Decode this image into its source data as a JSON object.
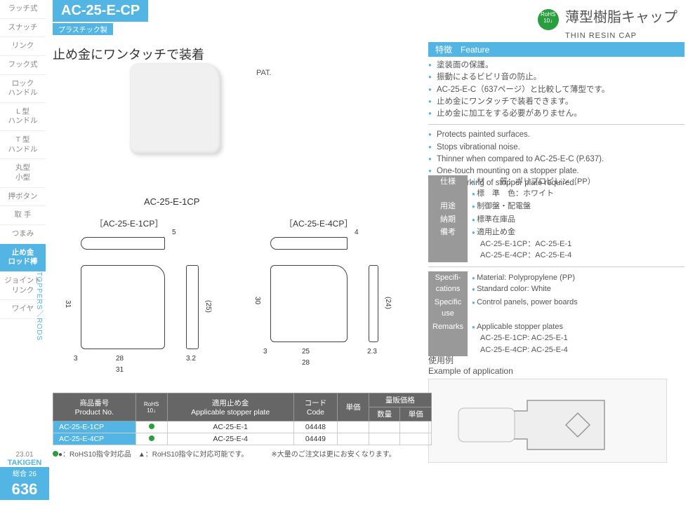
{
  "sidebar": {
    "items": [
      "ラッチ式",
      "スナッチ",
      "リンク",
      "フック式",
      "ロック\nハンドル",
      "L 型\nハンドル",
      "T 型\nハンドル",
      "丸型\n小型",
      "押ボタン",
      "取 手",
      "つまみ",
      "止め金\nロッド棒",
      "ジョイント\nリンク",
      "ワイヤ"
    ],
    "active_index": 11,
    "vertical": "STOPPERS／RODS"
  },
  "header": {
    "code": "AC-25-E-CP",
    "material": "プラスチック製",
    "title_jp": "薄型樹脂キャップ",
    "title_en": "THIN RESIN CAP",
    "rohs": "RoHS\n10↓"
  },
  "tagline": "止め金にワンタッチで装着",
  "pat": "PAT.",
  "product_code": "AC-25-E-1CP",
  "feature": {
    "header": "特徴　Feature",
    "jp": [
      "塗装面の保護。",
      "振動によるビビリ音の防止。",
      "AC-25-E-C（637ページ）と比較して薄型です。",
      "止め金にワンタッチで装着できます。",
      "止め金に加工をする必要がありません。"
    ],
    "en": [
      "Protects painted surfaces.",
      "Stops vibrational noise.",
      "Thinner when compared to AC-25-E-C (P.637).",
      "One-touch mounting on a stopper plate.",
      "No reworking of stopper plate required."
    ]
  },
  "specs_jp": [
    {
      "label": "仕様",
      "content": "材　　質：ポリプロピレン（PP）\n標　準　色：ホワイト"
    },
    {
      "label": "用途",
      "content": "制御盤・配電盤"
    },
    {
      "label": "納期",
      "content": "標準在庫品"
    },
    {
      "label": "備考",
      "content": "適用止め金\nAC-25-E-1CP：AC-25-E-1\nAC-25-E-4CP：AC-25-E-4"
    }
  ],
  "specs_en": [
    {
      "label": "Specifi-\ncations",
      "content": "Material: Polypropylene (PP)\nStandard color: White"
    },
    {
      "label": "Specific use",
      "content": "Control panels, power boards"
    },
    {
      "label": "Remarks",
      "content": "Applicable stopper plates\nAC-25-E-1CP: AC-25-E-1\nAC-25-E-4CP: AC-25-E-4"
    }
  ],
  "drawings": {
    "label1": "［AC-25-E-1CP］",
    "label2": "［AC-25-E-4CP］",
    "dims1": {
      "h": "31",
      "w_top": "28",
      "w_full": "31",
      "margin": "3",
      "side_w": "3.2",
      "side_inner": "(25)",
      "top_d": "5"
    },
    "dims2": {
      "h": "30",
      "w_top": "25",
      "w_full": "28",
      "margin": "3",
      "side_w": "2.3",
      "side_inner": "(24)",
      "top_d": "4"
    }
  },
  "table": {
    "headers": [
      "商品番号\nProduct No.",
      "RoHS\n10↓",
      "適用止め金\nApplicable stopper plate",
      "コード\nCode",
      "単価",
      "量販価格"
    ],
    "sub_headers": [
      "数量",
      "単価"
    ],
    "rows": [
      {
        "pn": "AC-25-E-1CP",
        "rohs": "●",
        "plate": "AC-25-E-1",
        "code": "04448",
        "price": "",
        "qty": "",
        "bulk": ""
      },
      {
        "pn": "AC-25-E-4CP",
        "rohs": "●",
        "plate": "AC-25-E-4",
        "code": "04449",
        "price": "",
        "qty": "",
        "bulk": ""
      }
    ],
    "note1": "●：RoHS10指令対応品　▲：RoHS10指令に対応可能です。",
    "note2": "※大量のご注文は更にお安くなります。"
  },
  "example": {
    "jp": "使用例",
    "en": "Example of application"
  },
  "footer": {
    "date": "23.01",
    "brand": "TAKIGEN",
    "cat": "総合 26",
    "page": "636"
  },
  "colors": {
    "accent": "#52b5e3",
    "green": "#2a9d3e",
    "gray_header": "#666"
  }
}
